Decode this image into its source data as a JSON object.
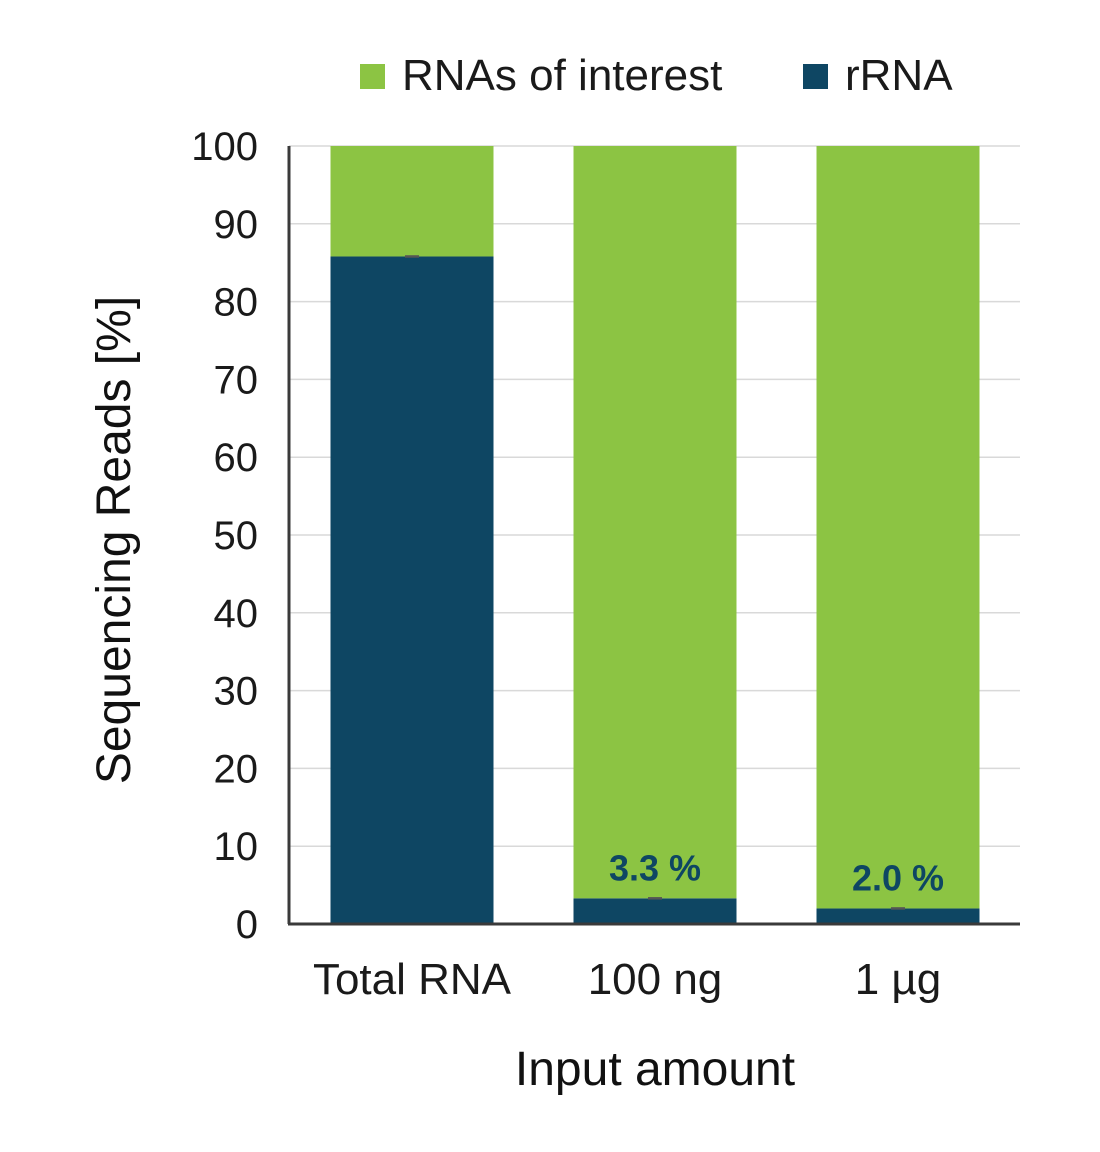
{
  "chart_data": {
    "type": "bar",
    "stacked": true,
    "categories": [
      "Total RNA",
      "100 ng",
      "1 µg"
    ],
    "series": [
      {
        "name": "rRNA",
        "values": [
          85.8,
          3.3,
          2.0
        ],
        "color": "#0e4663"
      },
      {
        "name": "RNAs of interest",
        "values": [
          14.2,
          96.7,
          98.0
        ],
        "color": "#8cc443"
      }
    ],
    "data_labels": [
      "",
      "3.3 %",
      "2.0 %"
    ],
    "data_label_color": "#0e4663",
    "xlabel": "Input amount",
    "ylabel": "Sequencing Reads [%]",
    "ylim": [
      0,
      100
    ],
    "yticks": [
      0,
      10,
      20,
      30,
      40,
      50,
      60,
      70,
      80,
      90,
      100
    ],
    "grid": true,
    "gridline_color": "#d9d9d9",
    "error_bars": true,
    "legend": {
      "position": "top",
      "entries": [
        {
          "label": "RNAs of interest",
          "color": "#8cc443"
        },
        {
          "label": "rRNA",
          "color": "#0e4663"
        }
      ]
    }
  }
}
